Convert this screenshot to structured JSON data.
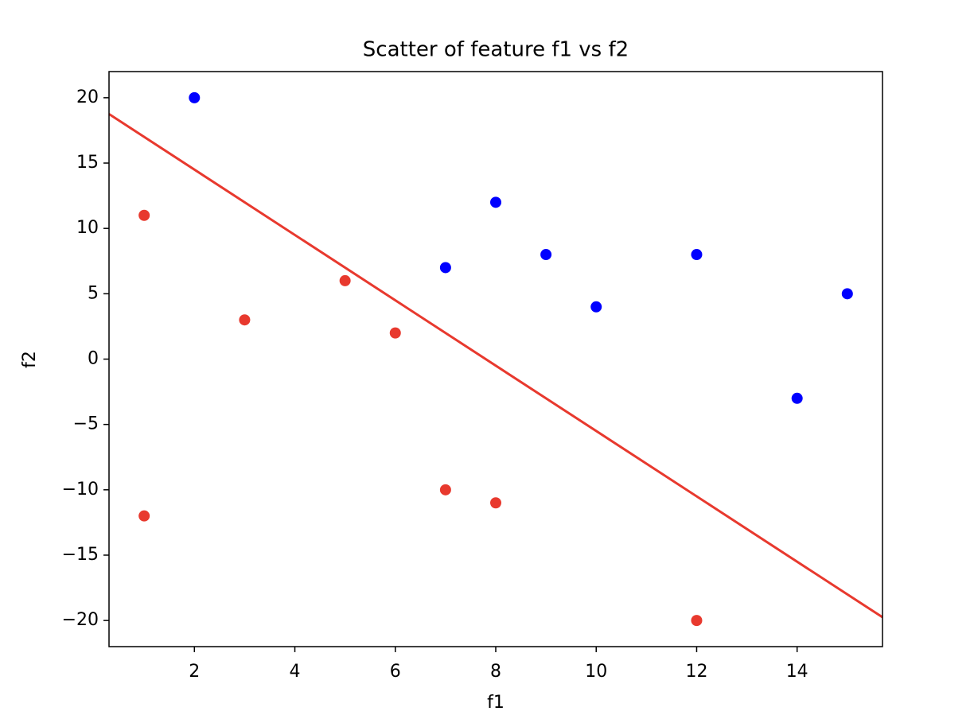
{
  "chart_data": {
    "type": "scatter",
    "title": "Scatter of feature f1 vs f2",
    "x_label": "f1",
    "y_label": "f2",
    "xlim": [
      0.3,
      15.7
    ],
    "ylim": [
      -22,
      22
    ],
    "xticks": [
      2,
      4,
      6,
      8,
      10,
      12,
      14
    ],
    "yticks": [
      {
        "value": -20,
        "label": "−20"
      },
      {
        "value": -15,
        "label": "−15"
      },
      {
        "value": -10,
        "label": "−10"
      },
      {
        "value": -5,
        "label": "−5"
      },
      0,
      5,
      10,
      15,
      20
    ],
    "grid": false,
    "series": [
      {
        "type": "scatter",
        "color": "#0000ff",
        "x": [
          2,
          7,
          8,
          9,
          10,
          12,
          14,
          15
        ],
        "values": [
          20,
          7,
          12,
          8,
          4,
          8,
          -3,
          5
        ]
      },
      {
        "type": "scatter",
        "color": "#e8392e",
        "x": [
          1,
          1,
          3,
          5,
          6,
          7,
          8,
          12
        ],
        "values": [
          11,
          -12,
          3,
          6,
          2,
          -10,
          -11,
          -20
        ]
      },
      {
        "type": "line",
        "color": "#e8392e",
        "x": [
          0.3,
          15.7
        ],
        "values": [
          18.75,
          -19.75
        ]
      }
    ]
  }
}
